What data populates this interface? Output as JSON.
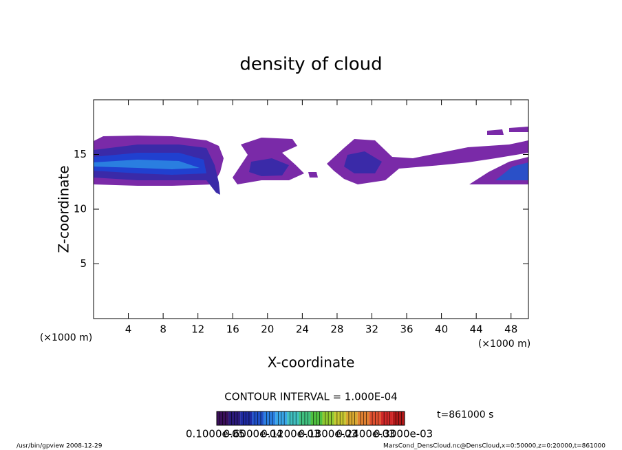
{
  "chart_data": {
    "type": "contour",
    "title": "density of cloud",
    "x_label": "X-coordinate",
    "y_label": "Z-coordinate",
    "x_unit_left": "(×1000 m)",
    "x_unit_right": "(×1000 m)",
    "xlim": [
      0,
      50
    ],
    "xticks": [
      4,
      8,
      12,
      16,
      20,
      24,
      28,
      32,
      36,
      40,
      44,
      48
    ],
    "ylim": [
      0,
      20
    ],
    "yticks": [
      5,
      10,
      15
    ],
    "contour_interval": "CONTOUR INTERVAL = 1.000E-04",
    "time_label": "t=861000 s",
    "colorbar_labels": [
      "0.1000e-05",
      "0.6000e-04",
      "0.1200e-03",
      "0.1800e-03",
      "0.2400e-03",
      "0.3000e-03"
    ],
    "colorbar_colors": [
      "#3a0f5a",
      "#2a1a7a",
      "#1e2aa0",
      "#2050c8",
      "#2a7ee0",
      "#3aa6e8",
      "#40c0c0",
      "#40c080",
      "#50c040",
      "#90c830",
      "#c8c830",
      "#d8a830",
      "#e08030",
      "#e05030",
      "#d02828",
      "#b01818"
    ],
    "footer_left": "/usr/bin/gpview  2008-12-29",
    "footer_right": "MarsCond_DensCloud.nc@DensCloud,x=0:50000,z=0:20000,t=861000"
  }
}
